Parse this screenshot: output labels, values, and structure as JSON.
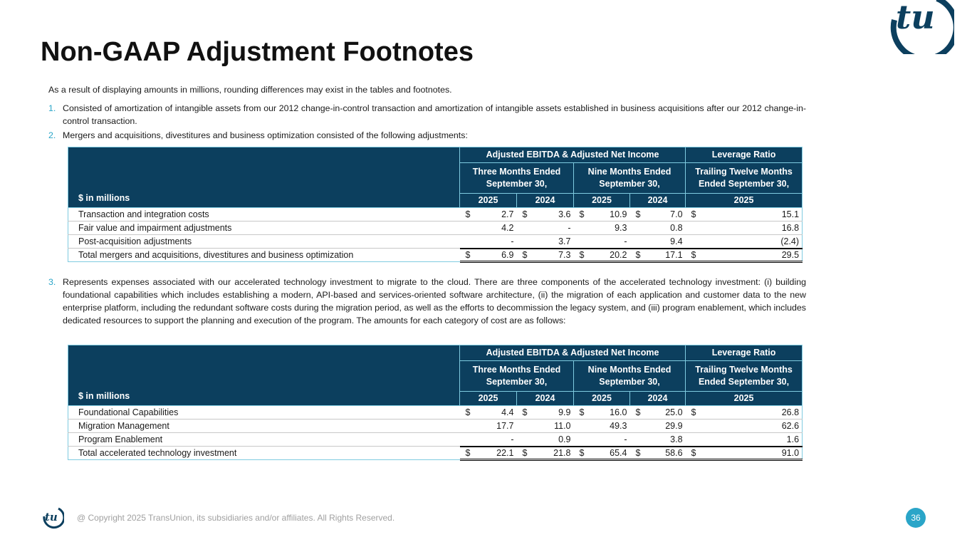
{
  "title": "Non-GAAP Adjustment Footnotes",
  "intro": "As a result of displaying amounts in millions, rounding differences may exist in the tables and footnotes.",
  "footnotes": [
    {
      "num": "1.",
      "text": "Consisted of amortization of intangible assets from our 2012 change-in-control transaction and amortization of intangible assets established in business acquisitions after our 2012 change-in-control transaction."
    },
    {
      "num": "2.",
      "text": "Mergers and acquisitions, divestitures and business optimization consisted of the following adjustments:"
    },
    {
      "num": "3.",
      "text": "Represents expenses associated with our accelerated technology investment to migrate to the cloud. There are three components of the accelerated technology investment: (i) building foundational capabilities which includes establishing a modern, API-based and services-oriented software architecture, (ii) the migration of each application and customer data to the new enterprise platform, including the redundant software costs during the migration period, as well as the efforts to decommission the legacy system, and (iii) program enablement, which includes dedicated resources to support the planning and execution of the program. The amounts for each category of cost are as follows:"
    }
  ],
  "table_header": {
    "label": "$ in millions",
    "group1": "Adjusted EBITDA & Adjusted Net Income",
    "group2": "Leverage Ratio",
    "period1": [
      "Three Months Ended",
      "September 30,"
    ],
    "period2": [
      "Nine Months Ended",
      "September 30,"
    ],
    "period3": [
      "Trailing Twelve Months",
      "Ended September 30,"
    ],
    "years": [
      "2025",
      "2024",
      "2025",
      "2024",
      "2025"
    ]
  },
  "tables": [
    {
      "rows": [
        {
          "label": "Transaction and integration costs",
          "values": [
            "2.7",
            "3.6",
            "10.9",
            "7.0",
            "15.1"
          ],
          "dollar": true
        },
        {
          "label": "Fair value and impairment adjustments",
          "values": [
            "4.2",
            "-",
            "9.3",
            "0.8",
            "16.8"
          ]
        },
        {
          "label": "Post-acquisition adjustments",
          "values": [
            "-",
            "3.7",
            "-",
            "9.4",
            "(2.4)"
          ]
        },
        {
          "label": "Total mergers and acquisitions, divestitures and business optimization",
          "values": [
            "6.9",
            "7.3",
            "20.2",
            "17.1",
            "29.5"
          ],
          "dollar": true,
          "total": true
        }
      ]
    },
    {
      "rows": [
        {
          "label": "Foundational Capabilities",
          "values": [
            "4.4",
            "9.9",
            "16.0",
            "25.0",
            "26.8"
          ],
          "dollar": true
        },
        {
          "label": "Migration Management",
          "values": [
            "17.7",
            "11.0",
            "49.3",
            "29.9",
            "62.6"
          ]
        },
        {
          "label": "Program Enablement",
          "values": [
            "-",
            "0.9",
            "-",
            "3.8",
            "1.6"
          ]
        },
        {
          "label": "Total accelerated technology investment",
          "values": [
            "22.1",
            "21.8",
            "65.4",
            "58.6",
            "91.0"
          ],
          "dollar": true,
          "total": true
        }
      ]
    }
  ],
  "currency_symbol": "$",
  "logo_text": "tu",
  "footer": {
    "copyright": "@ Copyright 2025 TransUnion, its subsidiaries and/or affiliates.  All Rights Reserved.",
    "page": "36"
  },
  "colors": {
    "navy": "#0c3f5e",
    "teal": "#2aa5c8"
  }
}
